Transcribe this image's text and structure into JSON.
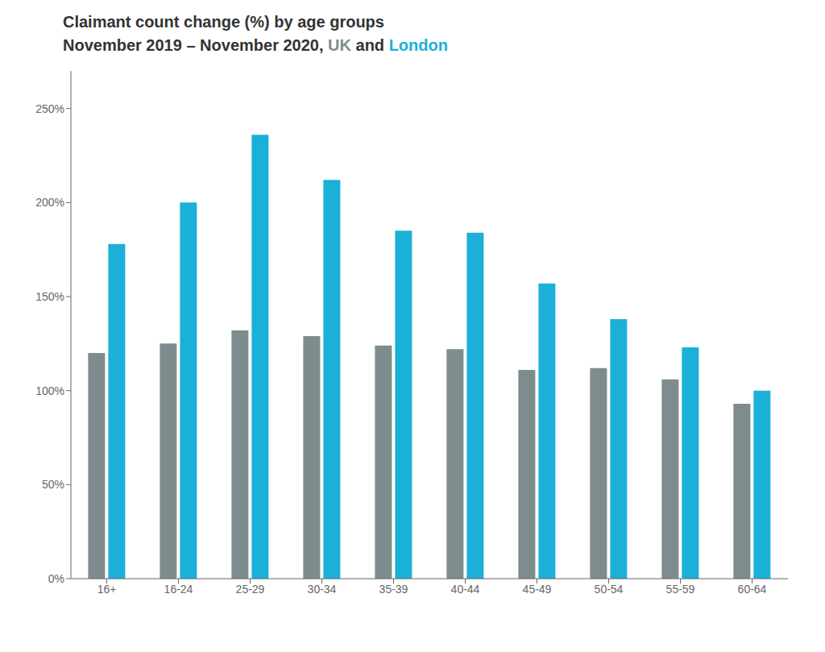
{
  "chart_data": {
    "type": "bar",
    "title": "Claimant count change (%) by age groups",
    "subtitle": "November 2019 – November 2020, UK and London",
    "categories": [
      "16+",
      "16-24",
      "25-29",
      "30-34",
      "35-39",
      "40-44",
      "45-49",
      "50-54",
      "55-59",
      "60-64"
    ],
    "series": [
      {
        "name": "UK",
        "color": "#7f8c8d",
        "values": [
          120,
          125,
          132,
          129,
          124,
          122,
          111,
          112,
          106,
          93
        ]
      },
      {
        "name": "London",
        "color": "#1ab0d8",
        "values": [
          178,
          200,
          236,
          212,
          185,
          184,
          157,
          138,
          123,
          100
        ]
      }
    ],
    "ylim": [
      0,
      270
    ],
    "yticks": [
      {
        "value": 0,
        "label": "0%"
      },
      {
        "value": 50,
        "label": "50%"
      },
      {
        "value": 100,
        "label": "100%"
      },
      {
        "value": 150,
        "label": "150%"
      },
      {
        "value": 200,
        "label": "200%"
      },
      {
        "value": 250,
        "label": "250%"
      }
    ],
    "grid": false
  }
}
